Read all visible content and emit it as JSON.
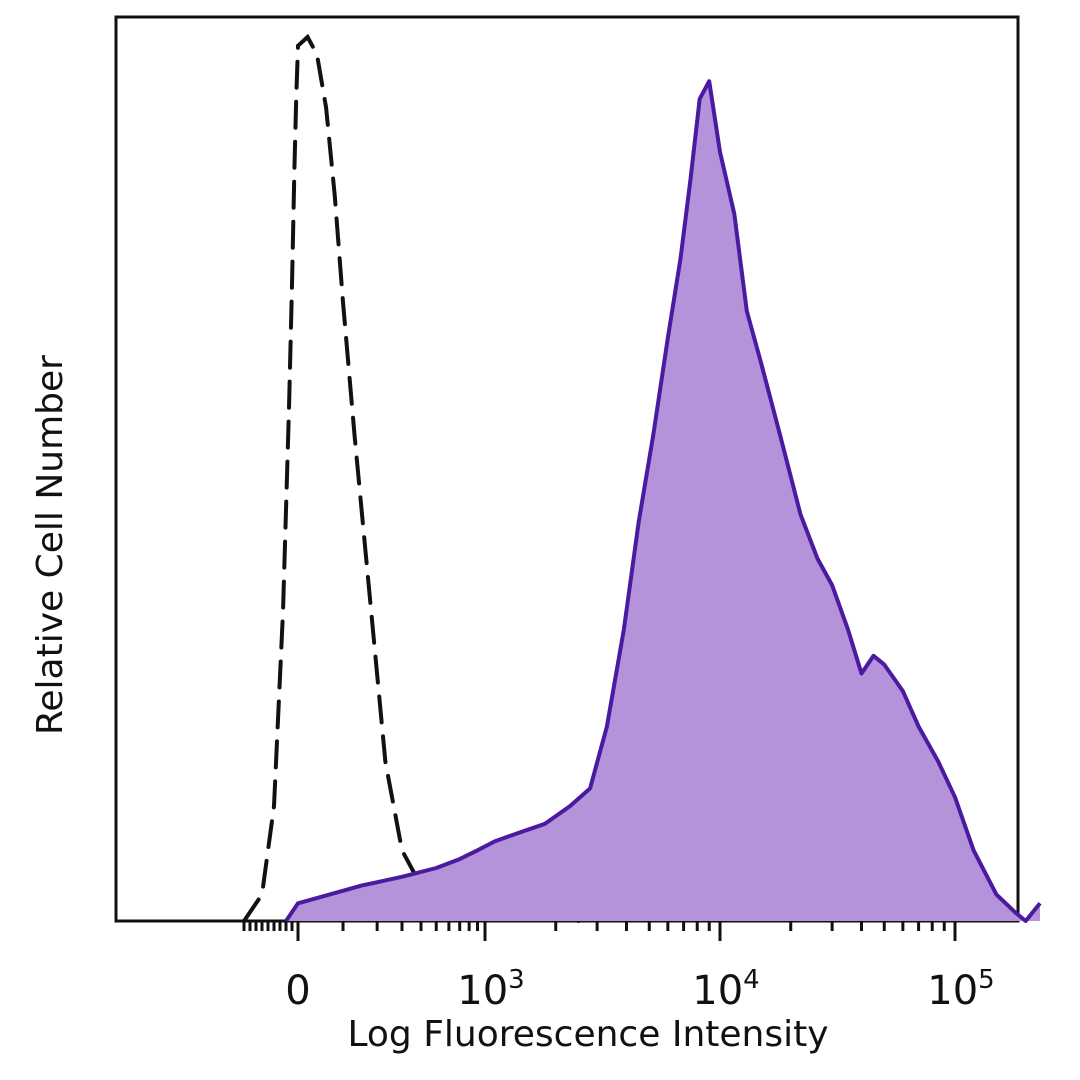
{
  "chart_data": {
    "type": "area",
    "title": "",
    "xlabel": "Log Fluorescence Intensity",
    "ylabel": "Relative Cell Number",
    "x_scale": "biexponential (logicle)",
    "xlim": [
      -1000,
      250000
    ],
    "ylim": [
      0,
      1
    ],
    "grid": false,
    "legend": "none",
    "x_ticks": [
      {
        "value": 0,
        "base": "0",
        "exp": ""
      },
      {
        "value": 1000,
        "base": "10",
        "exp": "3"
      },
      {
        "value": 10000,
        "base": "10",
        "exp": "4"
      },
      {
        "value": 100000,
        "base": "10",
        "exp": "5"
      }
    ],
    "series": [
      {
        "style": "dashed-outline",
        "color": "#111111",
        "x": [
          -900,
          -600,
          -400,
          -250,
          -150,
          -100,
          -60,
          -30,
          0,
          20,
          40,
          60,
          80,
          100,
          130,
          180,
          230,
          300,
          400,
          550,
          700,
          900,
          1200,
          1600,
          2500
        ],
        "y": [
          0.0,
          0.03,
          0.13,
          0.35,
          0.58,
          0.72,
          0.85,
          0.93,
          0.99,
          1.0,
          0.98,
          0.92,
          0.82,
          0.7,
          0.55,
          0.35,
          0.18,
          0.08,
          0.04,
          0.03,
          0.02,
          0.01,
          0.01,
          0.01,
          0.0
        ]
      },
      {
        "style": "filled",
        "color": "#4a1aa0",
        "fill": "#b493db",
        "x": [
          -200,
          0,
          150,
          300,
          500,
          700,
          900,
          1100,
          1400,
          1800,
          2300,
          2800,
          3300,
          3900,
          4500,
          5200,
          6000,
          6800,
          7500,
          8200,
          9000,
          10000,
          11500,
          13000,
          15000,
          18000,
          22000,
          26000,
          30000,
          35000,
          40000,
          45000,
          50000,
          60000,
          70000,
          85000,
          100000,
          120000,
          150000,
          180000,
          200000,
          230000
        ],
        "y": [
          0.0,
          0.02,
          0.04,
          0.05,
          0.06,
          0.07,
          0.08,
          0.09,
          0.1,
          0.11,
          0.13,
          0.15,
          0.22,
          0.33,
          0.45,
          0.55,
          0.66,
          0.75,
          0.84,
          0.93,
          0.95,
          0.87,
          0.8,
          0.69,
          0.63,
          0.55,
          0.46,
          0.41,
          0.38,
          0.33,
          0.28,
          0.3,
          0.29,
          0.26,
          0.22,
          0.18,
          0.14,
          0.08,
          0.03,
          0.01,
          0.0,
          0.02
        ]
      }
    ]
  }
}
